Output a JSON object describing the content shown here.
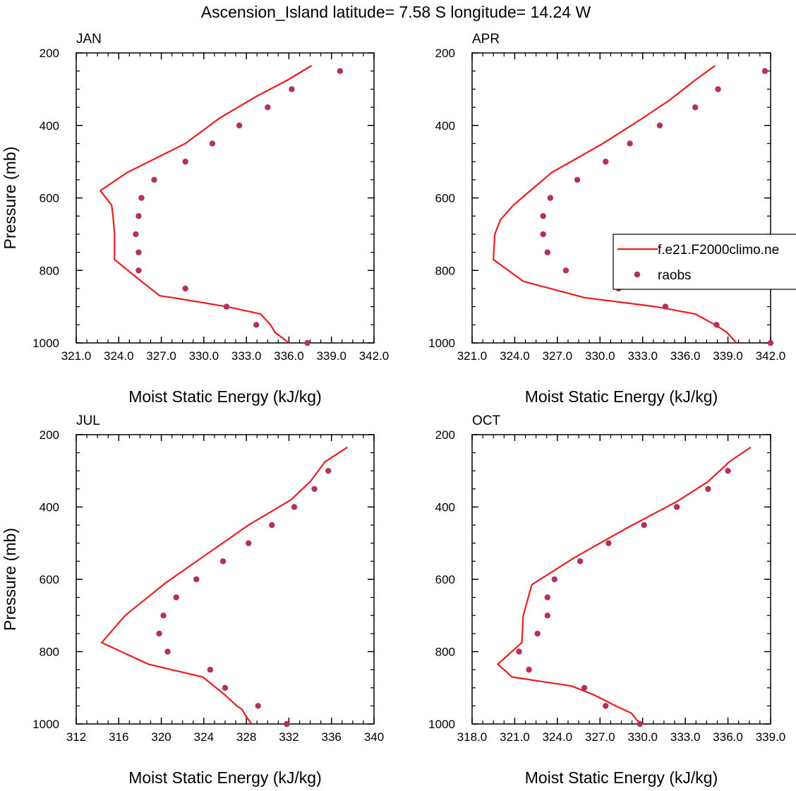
{
  "figure": {
    "title": "Ascension_Island  latitude= 7.58 S longitude= 14.24 W"
  },
  "legend": {
    "model_label": "f.e21.F2000climo.ne",
    "obs_label": "raobs"
  },
  "colors": {
    "model_line": "#ee1c1c",
    "obs_marker": "#b3305f",
    "axes": "#000000",
    "background": "#ffffff"
  },
  "chart_data": [
    {
      "type": "line",
      "title": "JAN",
      "xlabel": "Moist Static Energy (kJ/kg)",
      "ylabel": "Pressure (mb)",
      "xlim": [
        321.0,
        342.0
      ],
      "ylim": [
        200,
        1000
      ],
      "y_inverted": true,
      "xticks": [
        "321.0",
        "324.0",
        "327.0",
        "330.0",
        "333.0",
        "336.0",
        "339.0",
        "342.0"
      ],
      "yticks": [
        "200",
        "400",
        "600",
        "800",
        "1000"
      ],
      "series": [
        {
          "kind": "line",
          "x": [
            336.0,
            335.0,
            334.7,
            334.0,
            331.6,
            327.8,
            326.9,
            325.6,
            323.7,
            323.7,
            323.6,
            323.5,
            322.7,
            324.6,
            328.7,
            331.1,
            333.7,
            335.9,
            337.6
          ],
          "y": [
            1000,
            970,
            950,
            920,
            900,
            875,
            870,
            830,
            770,
            700,
            650,
            620,
            580,
            530,
            450,
            380,
            320,
            275,
            235
          ]
        },
        {
          "kind": "scatter",
          "x": [
            337.3,
            333.7,
            331.6,
            328.7,
            325.4,
            325.4,
            325.2,
            325.4,
            325.6,
            326.5,
            328.7,
            330.6,
            332.5,
            334.5,
            336.2,
            339.6
          ],
          "y": [
            1000,
            950,
            900,
            850,
            800,
            750,
            700,
            650,
            600,
            550,
            500,
            450,
            400,
            350,
            300,
            250
          ]
        }
      ]
    },
    {
      "type": "line",
      "title": "APR",
      "xlabel": "Moist Static Energy (kJ/kg)",
      "ylabel": "",
      "xlim": [
        321.0,
        342.0
      ],
      "ylim": [
        200,
        1000
      ],
      "y_inverted": true,
      "xticks": [
        "321.0",
        "324.0",
        "327.0",
        "330.0",
        "333.0",
        "336.0",
        "339.0",
        "342.0"
      ],
      "yticks": [
        "200",
        "400",
        "600",
        "800",
        "1000"
      ],
      "series": [
        {
          "kind": "line",
          "x": [
            339.6,
            338.9,
            338.1,
            336.7,
            333.9,
            328.9,
            324.6,
            322.5,
            322.6,
            323.0,
            323.9,
            324.5,
            326.6,
            330.2,
            333.0,
            334.9,
            336.7,
            338.1
          ],
          "y": [
            1000,
            970,
            950,
            920,
            900,
            875,
            830,
            770,
            700,
            660,
            620,
            600,
            530,
            450,
            380,
            330,
            275,
            235
          ]
        },
        {
          "kind": "scatter",
          "x": [
            342.0,
            338.2,
            334.6,
            331.3,
            327.6,
            326.3,
            326.0,
            326.0,
            326.5,
            328.4,
            330.4,
            332.1,
            334.2,
            336.7,
            338.3,
            341.6
          ],
          "y": [
            1000,
            950,
            900,
            850,
            800,
            750,
            700,
            650,
            600,
            550,
            500,
            450,
            400,
            350,
            300,
            250
          ]
        }
      ]
    },
    {
      "type": "line",
      "title": "JUL",
      "xlabel": "Moist Static Energy (kJ/kg)",
      "ylabel": "Pressure (mb)",
      "xlim": [
        312,
        340
      ],
      "ylim": [
        200,
        1000
      ],
      "y_inverted": true,
      "xticks": [
        "312",
        "316",
        "320",
        "324",
        "328",
        "332",
        "336",
        "340"
      ],
      "yticks": [
        "200",
        "400",
        "600",
        "800",
        "1000"
      ],
      "series": [
        {
          "kind": "line",
          "x": [
            328.5,
            328.0,
            327.6,
            327.1,
            326.0,
            323.9,
            318.8,
            314.4,
            316.6,
            320.4,
            324.3,
            328.2,
            332.2,
            334.0,
            335.4,
            337.5
          ],
          "y": [
            1000,
            980,
            960,
            950,
            920,
            870,
            835,
            775,
            700,
            610,
            530,
            450,
            380,
            330,
            275,
            235
          ]
        },
        {
          "kind": "scatter",
          "x": [
            331.8,
            329.1,
            326.0,
            324.6,
            320.6,
            319.8,
            320.2,
            321.4,
            323.3,
            325.8,
            328.2,
            330.4,
            332.5,
            334.4,
            335.7
          ],
          "y": [
            1000,
            950,
            900,
            850,
            800,
            750,
            700,
            650,
            600,
            550,
            500,
            450,
            400,
            350,
            300
          ]
        }
      ]
    },
    {
      "type": "line",
      "title": "OCT",
      "xlabel": "Moist Static Energy (kJ/kg)",
      "ylabel": "",
      "xlim": [
        318.0,
        339.0
      ],
      "ylim": [
        200,
        1000
      ],
      "y_inverted": true,
      "xticks": [
        "318.0",
        "321.0",
        "324.0",
        "327.0",
        "330.0",
        "333.0",
        "336.0",
        "339.0"
      ],
      "yticks": [
        "200",
        "400",
        "600",
        "800",
        "1000"
      ],
      "series": [
        {
          "kind": "line",
          "x": [
            330.0,
            329.6,
            329.2,
            328.1,
            326.6,
            325.0,
            320.8,
            320.4,
            319.8,
            321.5,
            321.6,
            322.2,
            325.2,
            328.8,
            332.4,
            334.6,
            336.1,
            337.6
          ],
          "y": [
            1000,
            990,
            970,
            950,
            920,
            895,
            870,
            855,
            835,
            775,
            700,
            615,
            540,
            460,
            385,
            330,
            275,
            235
          ]
        },
        {
          "kind": "scatter",
          "x": [
            329.8,
            327.4,
            325.9,
            322.0,
            321.3,
            322.6,
            323.3,
            323.3,
            323.8,
            325.6,
            327.6,
            330.1,
            332.4,
            334.6,
            336.0
          ],
          "y": [
            1000,
            950,
            900,
            850,
            800,
            750,
            700,
            650,
            600,
            550,
            500,
            450,
            400,
            350,
            300
          ]
        }
      ]
    }
  ]
}
